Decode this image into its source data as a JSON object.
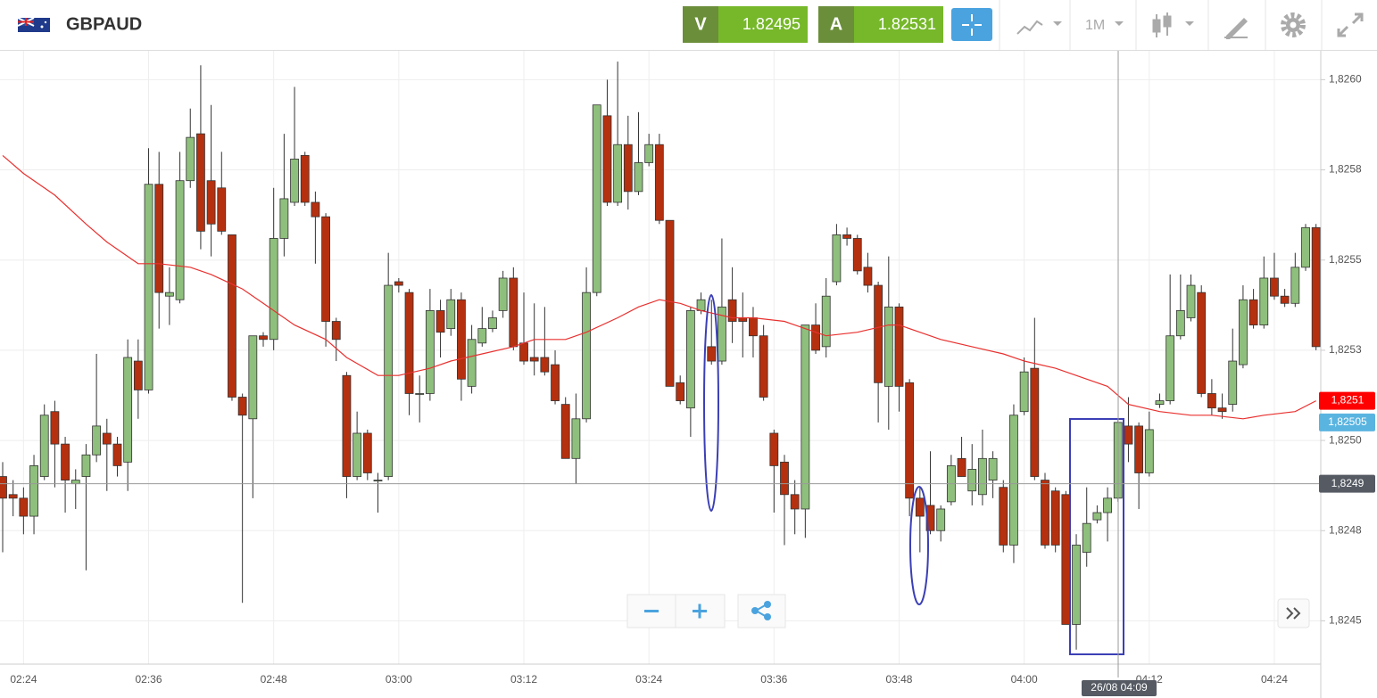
{
  "header": {
    "symbol": "GBPAUD",
    "sell_label": "V",
    "sell_price": "1.82495",
    "buy_label": "A",
    "buy_price": "1.82531",
    "timeframe": "1M"
  },
  "chart_data": {
    "type": "candlestick",
    "categories": [
      null,
      null,
      "02:24",
      null,
      null,
      null,
      null,
      null,
      null,
      null,
      null,
      null,
      null,
      null,
      "02:36",
      null,
      null,
      null,
      null,
      null,
      null,
      null,
      null,
      null,
      null,
      null,
      "02:48",
      null,
      null,
      null,
      null,
      null,
      null,
      null,
      null,
      null,
      null,
      null,
      "03:00",
      null,
      null,
      null,
      null,
      null,
      null,
      null,
      null,
      null,
      null,
      null,
      "03:12",
      null,
      null,
      null,
      null,
      null,
      null,
      null,
      null,
      null,
      null,
      null,
      "03:24",
      null,
      null,
      null,
      null,
      null,
      null,
      null,
      null,
      null,
      null,
      null,
      "03:36",
      null,
      null,
      null,
      null,
      null,
      null,
      null,
      null,
      null,
      null,
      null,
      "03:48",
      null,
      null,
      null,
      null,
      null,
      null,
      null,
      null,
      null,
      null,
      null,
      "04:00",
      null,
      null,
      null,
      null,
      null,
      null,
      null,
      null,
      null,
      null,
      null,
      "04:12",
      null,
      null,
      null,
      null,
      null,
      null,
      null,
      null,
      null,
      null,
      null,
      "04:24",
      null,
      null,
      null,
      null
    ],
    "open": [
      1.8249,
      1.82485,
      1.82484,
      1.82479,
      1.8249,
      1.82508,
      1.82499,
      1.82488,
      1.8249,
      1.82496,
      1.82502,
      1.82499,
      1.82494,
      1.82522,
      1.82514,
      1.82571,
      1.8254,
      1.82539,
      1.82572,
      1.82585,
      1.82572,
      1.8257,
      1.82557,
      1.82512,
      1.82506,
      1.82529,
      1.82528,
      1.82556,
      1.82566,
      1.82579,
      1.82566,
      1.82562,
      1.82533,
      1.82518,
      1.8249,
      1.82502,
      1.82489,
      1.8249,
      1.82544,
      1.82541,
      1.82513,
      1.82513,
      1.82536,
      1.82531,
      1.82539,
      1.82515,
      1.82527,
      1.82531,
      1.82536,
      1.82545,
      1.82527,
      1.82523,
      1.82523,
      1.82521,
      1.8251,
      1.82495,
      1.82506,
      1.82541,
      1.8259,
      1.82566,
      1.82582,
      1.82569,
      1.82577,
      1.82582,
      1.82561,
      1.82516,
      1.82509,
      1.82536,
      1.82526,
      1.82522,
      1.82539,
      1.82534,
      1.82534,
      1.82529,
      1.82502,
      1.82494,
      1.82485,
      1.82481,
      1.82532,
      1.82526,
      1.82544,
      1.82557,
      1.82556,
      1.82548,
      1.82543,
      1.82515,
      1.82537,
      1.82516,
      1.82484,
      1.82482,
      1.82475,
      1.82483,
      1.82495,
      1.82486,
      1.82485,
      1.82489,
      1.82487,
      1.82471,
      1.82508,
      1.8252,
      1.82489,
      1.82486,
      1.82485,
      1.82449,
      1.82469,
      1.82478,
      1.8248,
      1.82484,
      1.82504,
      1.82504,
      1.82491,
      1.8251,
      1.82511,
      1.82529,
      1.82534,
      1.82541,
      1.82513,
      1.82509,
      1.8251,
      1.82521,
      1.82539,
      1.82532,
      1.82545,
      1.8254,
      1.82538,
      1.82548,
      1.82559
    ],
    "high": [
      1.82494,
      1.82489,
      1.82487,
      1.82496,
      1.8251,
      1.82511,
      1.82501,
      1.82492,
      1.82499,
      1.82524,
      1.82506,
      1.82501,
      1.82528,
      1.82528,
      1.82581,
      1.8258,
      1.82548,
      1.8258,
      1.82592,
      1.82604,
      1.82593,
      1.8258,
      1.82557,
      1.82513,
      1.82529,
      1.8253,
      1.8257,
      1.82585,
      1.82598,
      1.8258,
      1.82569,
      1.82563,
      1.82534,
      1.82519,
      1.82508,
      1.82503,
      1.82491,
      1.82552,
      1.82545,
      1.82542,
      1.82518,
      1.82542,
      1.82539,
      1.82542,
      1.82541,
      1.82532,
      1.82537,
      1.82536,
      1.82547,
      1.82548,
      1.82541,
      1.82538,
      1.82537,
      1.82525,
      1.82512,
      1.82513,
      1.82548,
      1.82593,
      1.826,
      1.82605,
      1.8259,
      1.82591,
      1.82585,
      1.82585,
      1.82561,
      1.82518,
      1.82537,
      1.82541,
      1.82539,
      1.82556,
      1.82548,
      1.82541,
      1.82537,
      1.82532,
      1.82503,
      1.82496,
      1.82489,
      1.82532,
      1.82538,
      1.82545,
      1.8256,
      1.82559,
      1.82557,
      1.82552,
      1.82544,
      1.82551,
      1.82538,
      1.82517,
      1.82487,
      1.82497,
      1.82482,
      1.82496,
      1.82501,
      1.82499,
      1.82503,
      1.82497,
      1.82489,
      1.8251,
      1.82523,
      1.82534,
      1.82491,
      1.82487,
      1.82486,
      1.82474,
      1.82487,
      1.82482,
      1.82487,
      1.82506,
      1.82512,
      1.82505,
      1.82508,
      1.82513,
      1.82546,
      1.82546,
      1.82546,
      1.82543,
      1.82517,
      1.82513,
      1.82531,
      1.82543,
      1.82542,
      1.82551,
      1.82552,
      1.82542,
      1.82552,
      1.8256,
      1.8256
    ],
    "low": [
      1.82469,
      1.82479,
      1.82474,
      1.82474,
      1.82489,
      1.82487,
      1.8248,
      1.82481,
      1.82464,
      1.82494,
      1.82486,
      1.8249,
      1.82486,
      1.82506,
      1.82513,
      1.82531,
      1.82532,
      1.82538,
      1.8257,
      1.82553,
      1.82551,
      1.82557,
      1.82511,
      1.82455,
      1.82484,
      1.82526,
      1.82525,
      1.82551,
      1.82565,
      1.82565,
      1.82549,
      1.82526,
      1.82522,
      1.82484,
      1.82489,
      1.82489,
      1.8248,
      1.82489,
      1.82541,
      1.82507,
      1.82505,
      1.82511,
      1.82523,
      1.82529,
      1.82511,
      1.82513,
      1.82526,
      1.8253,
      1.82534,
      1.82525,
      1.82521,
      1.82518,
      1.82518,
      1.8251,
      1.82495,
      1.82488,
      1.82505,
      1.8254,
      1.82565,
      1.82565,
      1.82564,
      1.82568,
      1.82576,
      1.8256,
      1.82515,
      1.8251,
      1.82501,
      1.82535,
      1.82521,
      1.82521,
      1.82527,
      1.82523,
      1.82523,
      1.82511,
      1.8248,
      1.82471,
      1.82474,
      1.82473,
      1.82524,
      1.82523,
      1.82543,
      1.82554,
      1.82546,
      1.82541,
      1.82505,
      1.82503,
      1.82508,
      1.82479,
      1.82469,
      1.82474,
      1.82472,
      1.82482,
      1.8249,
      1.82482,
      1.82482,
      1.82484,
      1.82469,
      1.82466,
      1.82507,
      1.82489,
      1.8247,
      1.82469,
      1.82449,
      1.82442,
      1.82465,
      1.82477,
      1.82472,
      1.82483,
      1.82494,
      1.82481,
      1.8249,
      1.82509,
      1.8251,
      1.82528,
      1.82533,
      1.82512,
      1.82507,
      1.82506,
      1.82508,
      1.8252,
      1.82531,
      1.82531,
      1.82539,
      1.82537,
      1.82537,
      1.82547,
      1.82525
    ],
    "close": [
      1.82484,
      1.82484,
      1.82479,
      1.82493,
      1.82507,
      1.82499,
      1.82489,
      1.82489,
      1.82496,
      1.82504,
      1.82499,
      1.82493,
      1.82523,
      1.82514,
      1.82571,
      1.82541,
      1.82541,
      1.82572,
      1.82584,
      1.82558,
      1.8256,
      1.82558,
      1.82512,
      1.82507,
      1.82529,
      1.82528,
      1.82556,
      1.82567,
      1.82578,
      1.82566,
      1.82562,
      1.82533,
      1.82528,
      1.8249,
      1.82502,
      1.82491,
      1.82489,
      1.82543,
      1.82543,
      1.82513,
      1.82513,
      1.82536,
      1.8253,
      1.82539,
      1.82517,
      1.82528,
      1.82531,
      1.82534,
      1.82545,
      1.82526,
      1.82522,
      1.82522,
      1.82519,
      1.82511,
      1.82495,
      1.82506,
      1.82541,
      1.82593,
      1.82566,
      1.82582,
      1.82569,
      1.82577,
      1.82582,
      1.82561,
      1.82515,
      1.82511,
      1.82536,
      1.82539,
      1.82522,
      1.82537,
      1.82533,
      1.82533,
      1.82529,
      1.82512,
      1.82493,
      1.82485,
      1.82481,
      1.82532,
      1.82525,
      1.8254,
      1.82557,
      1.82556,
      1.82547,
      1.82543,
      1.82516,
      1.82537,
      1.82515,
      1.82484,
      1.82479,
      1.82475,
      1.82481,
      1.82493,
      1.8249,
      1.82492,
      1.82495,
      1.82495,
      1.82471,
      1.82507,
      1.82519,
      1.8249,
      1.82471,
      1.82471,
      1.82449,
      1.82471,
      1.82477,
      1.8248,
      1.82484,
      1.82505,
      1.82499,
      1.82491,
      1.82503,
      1.82511,
      1.82529,
      1.82536,
      1.82543,
      1.82513,
      1.82509,
      1.82508,
      1.82522,
      1.82539,
      1.82532,
      1.82545,
      1.8254,
      1.82538,
      1.82548,
      1.82559,
      1.82526
    ],
    "up_color": "#8fbf7c",
    "down_color": "#b5300f",
    "moving_average": {
      "color": "#e8312f",
      "x": [
        0,
        2,
        5,
        8,
        10,
        13,
        15,
        18,
        20,
        23,
        25,
        28,
        31,
        33,
        36,
        38,
        41,
        43,
        46,
        49,
        51,
        54,
        56,
        59,
        61,
        63,
        65,
        67,
        70,
        72,
        75,
        78,
        79,
        82,
        85,
        86,
        88,
        90,
        93,
        96,
        98,
        101,
        103,
        106,
        108,
        111,
        114,
        116,
        119,
        121,
        124,
        126
      ],
      "values": [
        1.82579,
        1.82574,
        1.82568,
        1.8256,
        1.82555,
        1.82549,
        1.82549,
        1.82548,
        1.82546,
        1.82542,
        1.82538,
        1.82532,
        1.82528,
        1.82523,
        1.82518,
        1.82518,
        1.8252,
        1.82522,
        1.82524,
        1.82526,
        1.82528,
        1.82528,
        1.8253,
        1.82534,
        1.82537,
        1.82539,
        1.82538,
        1.82536,
        1.82534,
        1.82534,
        1.82533,
        1.8253,
        1.82529,
        1.8253,
        1.82532,
        1.82532,
        1.8253,
        1.82528,
        1.82526,
        1.82524,
        1.82522,
        1.8252,
        1.82518,
        1.82515,
        1.8251,
        1.82508,
        1.82507,
        1.82507,
        1.82506,
        1.82507,
        1.82508,
        1.82511
      ]
    },
    "ylim": [
      1.82438,
      1.82608
    ],
    "yticks": [
      {
        "value": 1.8245,
        "label": "1,8245"
      },
      {
        "value": 1.82475,
        "label": "1,8248"
      },
      {
        "value": 1.825,
        "label": "1,8250"
      },
      {
        "value": 1.82525,
        "label": "1,8253"
      },
      {
        "value": 1.8255,
        "label": "1,8255"
      },
      {
        "value": 1.82575,
        "label": "1,8258"
      },
      {
        "value": 1.826,
        "label": "1,8260"
      }
    ],
    "grid": true,
    "price_tags": [
      {
        "value": 1.82511,
        "label": "1,8251",
        "color": "#ff0000"
      },
      {
        "value": 1.82505,
        "label": "1,82505",
        "color": "#5ab4e0"
      }
    ],
    "crosshair_price": {
      "value": 1.82488,
      "label": "1,8249"
    },
    "crosshair_time": "26/08 04:09"
  }
}
